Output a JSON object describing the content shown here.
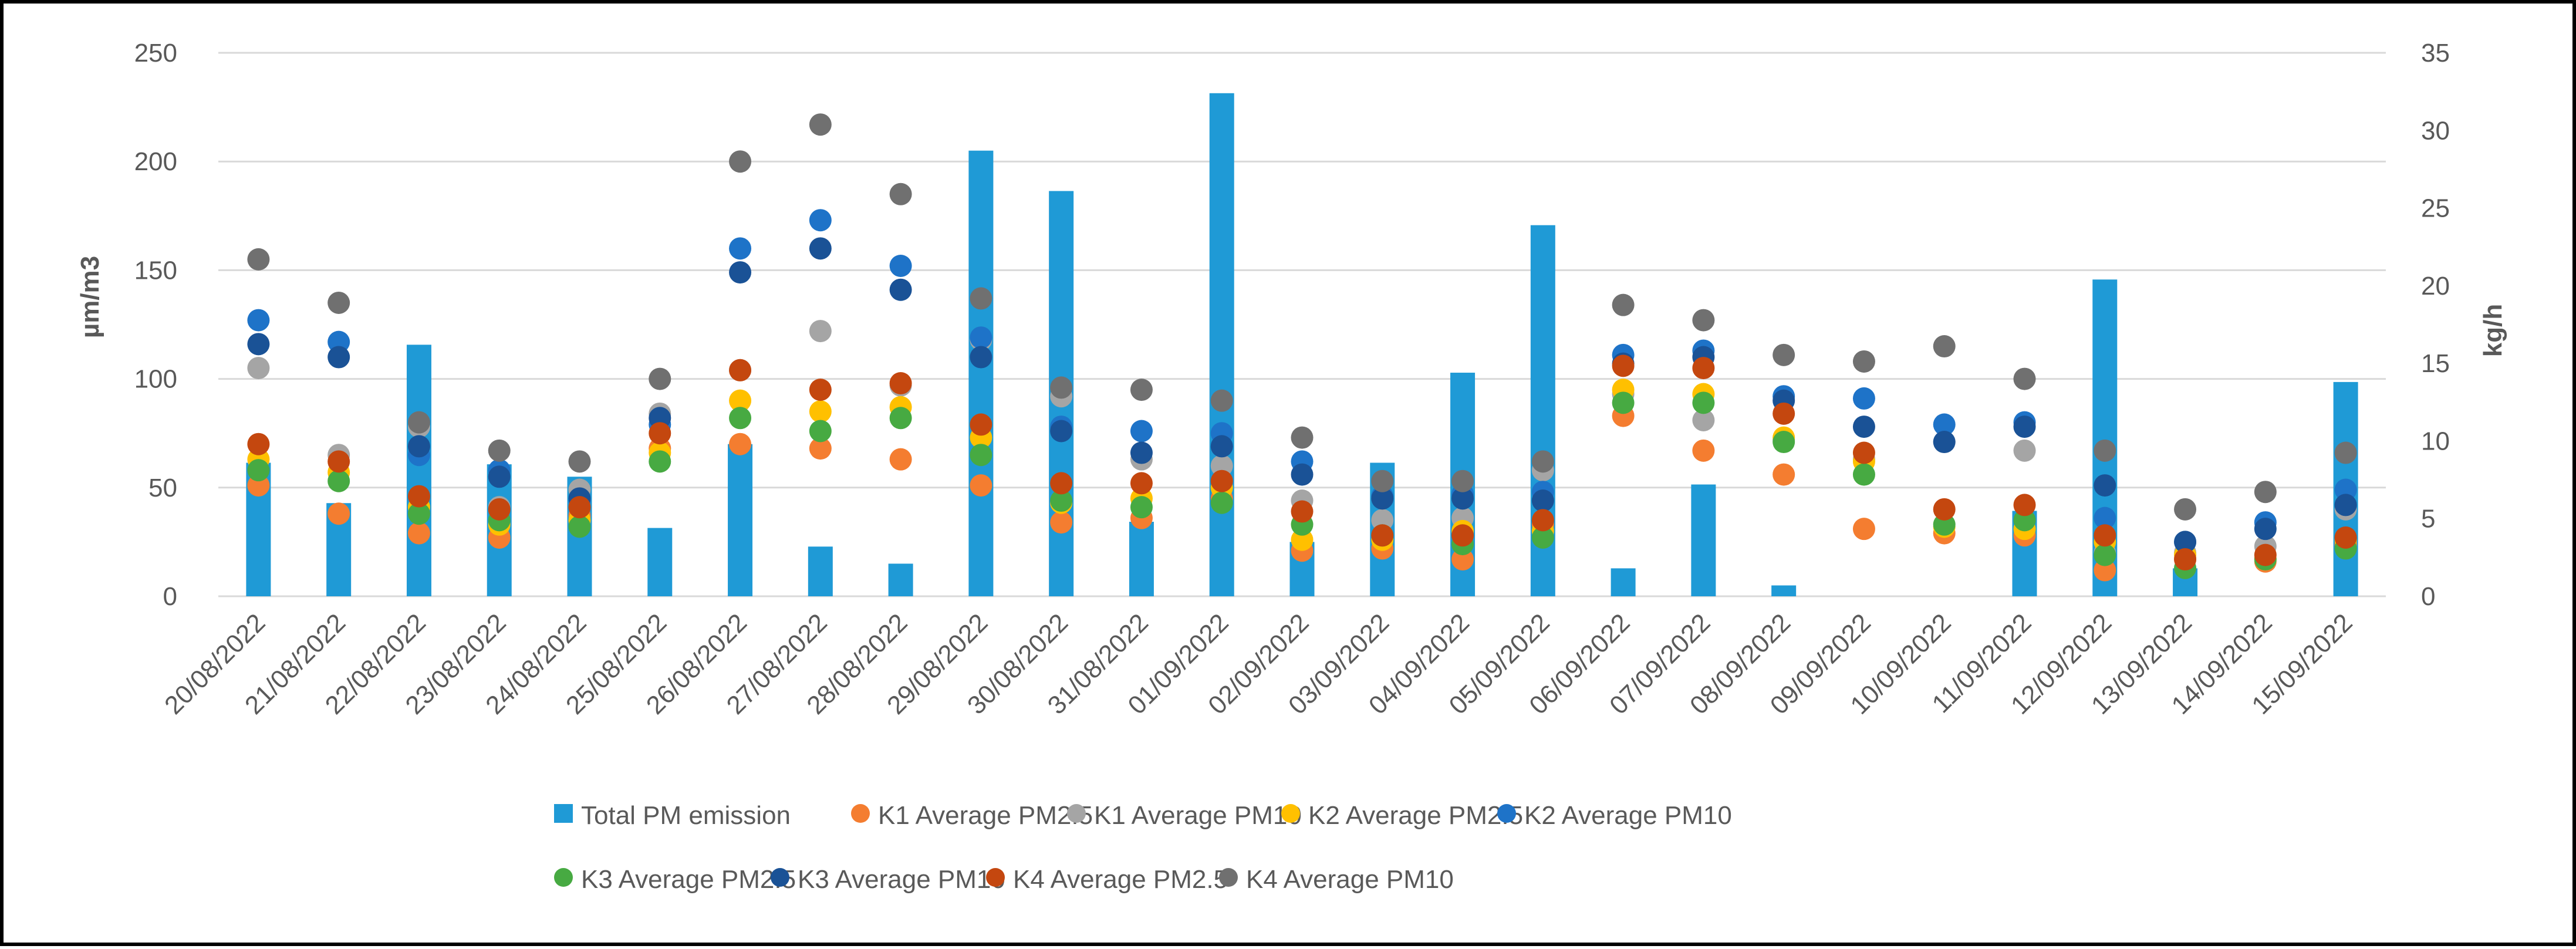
{
  "chart_data": {
    "type": "bar",
    "categories": [
      "20/08/2022",
      "21/08/2022",
      "22/08/2022",
      "23/08/2022",
      "24/08/2022",
      "25/08/2022",
      "26/08/2022",
      "27/08/2022",
      "28/08/2022",
      "29/08/2022",
      "30/08/2022",
      "31/08/2022",
      "01/09/2022",
      "02/09/2022",
      "03/09/2022",
      "04/09/2022",
      "05/09/2022",
      "06/09/2022",
      "07/09/2022",
      "08/09/2022",
      "09/09/2022",
      "10/09/2022",
      "11/09/2022",
      "12/09/2022",
      "13/09/2022",
      "14/09/2022",
      "15/09/2022"
    ],
    "ylabel": "µm/m3",
    "y2label": "kg/h",
    "ylim": [
      0,
      250
    ],
    "y2lim": [
      0,
      35
    ],
    "yticks": [
      0,
      50,
      100,
      150,
      200,
      250
    ],
    "y2ticks": [
      0,
      5,
      10,
      15,
      20,
      25,
      30,
      35
    ],
    "grid": true,
    "legend_position": "bottom",
    "bar_series": {
      "name": "Total PM emission",
      "axis": "right",
      "color": "#1f9ad6",
      "values": [
        8.6,
        6.0,
        16.2,
        8.5,
        7.7,
        4.4,
        9.8,
        3.2,
        2.1,
        28.7,
        26.1,
        4.8,
        32.4,
        3.5,
        8.6,
        14.4,
        23.9,
        1.8,
        7.2,
        0.7,
        0,
        0,
        5.5,
        20.4,
        1.8,
        0,
        13.8
      ]
    },
    "series": [
      {
        "name": "K1 Average PM2.5",
        "color": "#f47d30",
        "values": [
          51,
          38,
          29,
          27,
          37,
          68,
          70,
          68,
          63,
          51,
          34,
          36,
          45,
          21,
          22,
          17,
          33,
          83,
          67,
          56,
          31,
          29,
          28,
          12,
          17,
          16,
          24
        ]
      },
      {
        "name": "K1 Average PM10",
        "color": "#a5a5a5",
        "values": [
          105,
          65,
          78,
          41,
          49,
          84,
          104,
          122,
          97,
          118,
          92,
          63,
          60,
          44,
          35,
          36,
          58,
          93,
          81,
          72,
          63,
          71,
          67,
          20,
          20,
          23,
          40
        ]
      },
      {
        "name": "K2 Average PM2.5",
        "color": "#ffc000",
        "values": [
          63,
          57,
          41,
          33,
          35,
          66,
          90,
          85,
          87,
          73,
          43,
          45,
          50,
          26,
          26,
          30,
          30,
          95,
          93,
          73,
          62,
          32,
          31,
          25,
          19,
          17,
          26
        ]
      },
      {
        "name": "K2 Average PM10",
        "color": "#1e73c8",
        "values": [
          127,
          117,
          65,
          58,
          44,
          79,
          160,
          173,
          152,
          119,
          78,
          76,
          75,
          62,
          46,
          47,
          48,
          111,
          113,
          92,
          91,
          79,
          80,
          36,
          25,
          34,
          49
        ]
      },
      {
        "name": "K3 Average PM2.5",
        "color": "#47aa42",
        "values": [
          58,
          53,
          38,
          35,
          32,
          62,
          82,
          76,
          82,
          65,
          44,
          41,
          43,
          33,
          28,
          24,
          27,
          89,
          89,
          71,
          56,
          33,
          35,
          19,
          13,
          17,
          22
        ]
      },
      {
        "name": "K3 Average PM10",
        "color": "#1a5296",
        "values": [
          116,
          110,
          69,
          55,
          45,
          82,
          149,
          160,
          141,
          110,
          76,
          66,
          69,
          56,
          45,
          45,
          44,
          107,
          110,
          90,
          78,
          71,
          78,
          51,
          25,
          31,
          42
        ]
      },
      {
        "name": "K4 Average PM2.5",
        "color": "#c4470f",
        "values": [
          70,
          62,
          46,
          40,
          41,
          75,
          104,
          95,
          98,
          79,
          52,
          52,
          53,
          39,
          28,
          28,
          35,
          106,
          105,
          84,
          66,
          40,
          42,
          28,
          17,
          19,
          27
        ]
      },
      {
        "name": "K4 Average PM10",
        "color": "#707070",
        "values": [
          155,
          135,
          80,
          67,
          62,
          100,
          200,
          217,
          185,
          137,
          96,
          95,
          90,
          73,
          53,
          53,
          62,
          134,
          127,
          111,
          108,
          115,
          100,
          67,
          40,
          48,
          66
        ]
      }
    ]
  }
}
